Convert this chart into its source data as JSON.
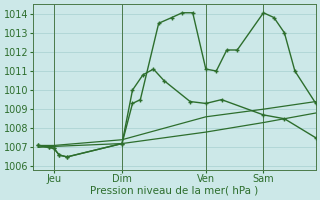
{
  "xlabel": "Pression niveau de la mer( hPa )",
  "bg_color": "#cce8e8",
  "grid_color": "#aed4d4",
  "line_color": "#2d6e2d",
  "ylim": [
    1005.8,
    1014.5
  ],
  "xlim": [
    0,
    108
  ],
  "xtick_positions": [
    8,
    34,
    66,
    88
  ],
  "xtick_labels": [
    "Jeu",
    "Dim",
    "Ven",
    "Sam"
  ],
  "ytick_positions": [
    1006,
    1007,
    1008,
    1009,
    1010,
    1011,
    1012,
    1013,
    1014
  ],
  "vlines": [
    8,
    34,
    66,
    88
  ],
  "line1_x": [
    2,
    6,
    8,
    10,
    13,
    34,
    38,
    41,
    48,
    53,
    57,
    61,
    66,
    70,
    74,
    78,
    88,
    92,
    96,
    100,
    108
  ],
  "line1_y": [
    1007.1,
    1007.0,
    1006.95,
    1006.6,
    1006.5,
    1007.2,
    1009.3,
    1009.5,
    1013.5,
    1013.8,
    1014.05,
    1014.05,
    1011.1,
    1011.0,
    1012.1,
    1012.1,
    1014.05,
    1013.8,
    1013.0,
    1011.0,
    1009.3
  ],
  "line2_x": [
    2,
    6,
    8,
    10,
    13,
    34,
    38,
    42,
    46,
    50,
    60,
    66,
    72,
    88,
    96,
    108
  ],
  "line2_y": [
    1007.1,
    1007.0,
    1006.95,
    1006.6,
    1006.5,
    1007.2,
    1010.0,
    1010.8,
    1011.1,
    1010.5,
    1009.4,
    1009.3,
    1009.5,
    1008.7,
    1008.5,
    1007.5
  ],
  "line3_x": [
    2,
    8,
    34,
    66,
    88,
    108
  ],
  "line3_y": [
    1007.1,
    1007.1,
    1007.4,
    1008.6,
    1009.0,
    1009.4
  ],
  "line4_x": [
    2,
    8,
    34,
    66,
    88,
    108
  ],
  "line4_y": [
    1007.0,
    1007.05,
    1007.2,
    1007.8,
    1008.3,
    1008.8
  ]
}
